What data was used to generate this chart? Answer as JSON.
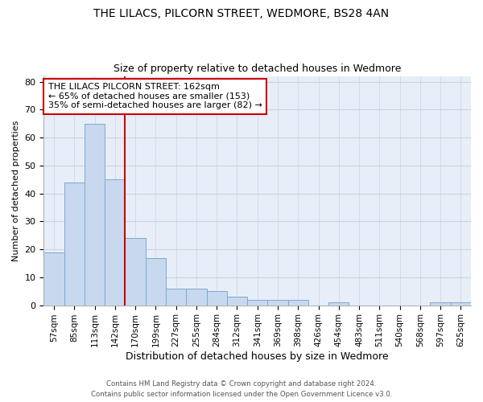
{
  "title": "THE LILACS, PILCORN STREET, WEDMORE, BS28 4AN",
  "subtitle": "Size of property relative to detached houses in Wedmore",
  "xlabel": "Distribution of detached houses by size in Wedmore",
  "ylabel": "Number of detached properties",
  "categories": [
    "57sqm",
    "85sqm",
    "113sqm",
    "142sqm",
    "170sqm",
    "199sqm",
    "227sqm",
    "255sqm",
    "284sqm",
    "312sqm",
    "341sqm",
    "369sqm",
    "398sqm",
    "426sqm",
    "454sqm",
    "483sqm",
    "511sqm",
    "540sqm",
    "568sqm",
    "597sqm",
    "625sqm"
  ],
  "values": [
    19,
    44,
    65,
    45,
    24,
    17,
    6,
    6,
    5,
    3,
    2,
    2,
    2,
    0,
    1,
    0,
    0,
    0,
    0,
    1,
    1
  ],
  "bar_color": "#c8d8ee",
  "bar_edge_color": "#7aaad0",
  "grid_color": "#c8d4e8",
  "bg_color": "#e8eef8",
  "vline_x_index": 4.0,
  "vline_color": "#cc0000",
  "annotation_line1": "THE LILACS PILCORN STREET: 162sqm",
  "annotation_line2": "← 65% of detached houses are smaller (153)",
  "annotation_line3": "35% of semi-detached houses are larger (82) →",
  "annotation_box_color": "white",
  "annotation_box_edge_color": "#cc0000",
  "ylim": [
    0,
    82
  ],
  "yticks": [
    0,
    10,
    20,
    30,
    40,
    50,
    60,
    70,
    80
  ],
  "footer1": "Contains HM Land Registry data © Crown copyright and database right 2024.",
  "footer2": "Contains public sector information licensed under the Open Government Licence v3.0."
}
